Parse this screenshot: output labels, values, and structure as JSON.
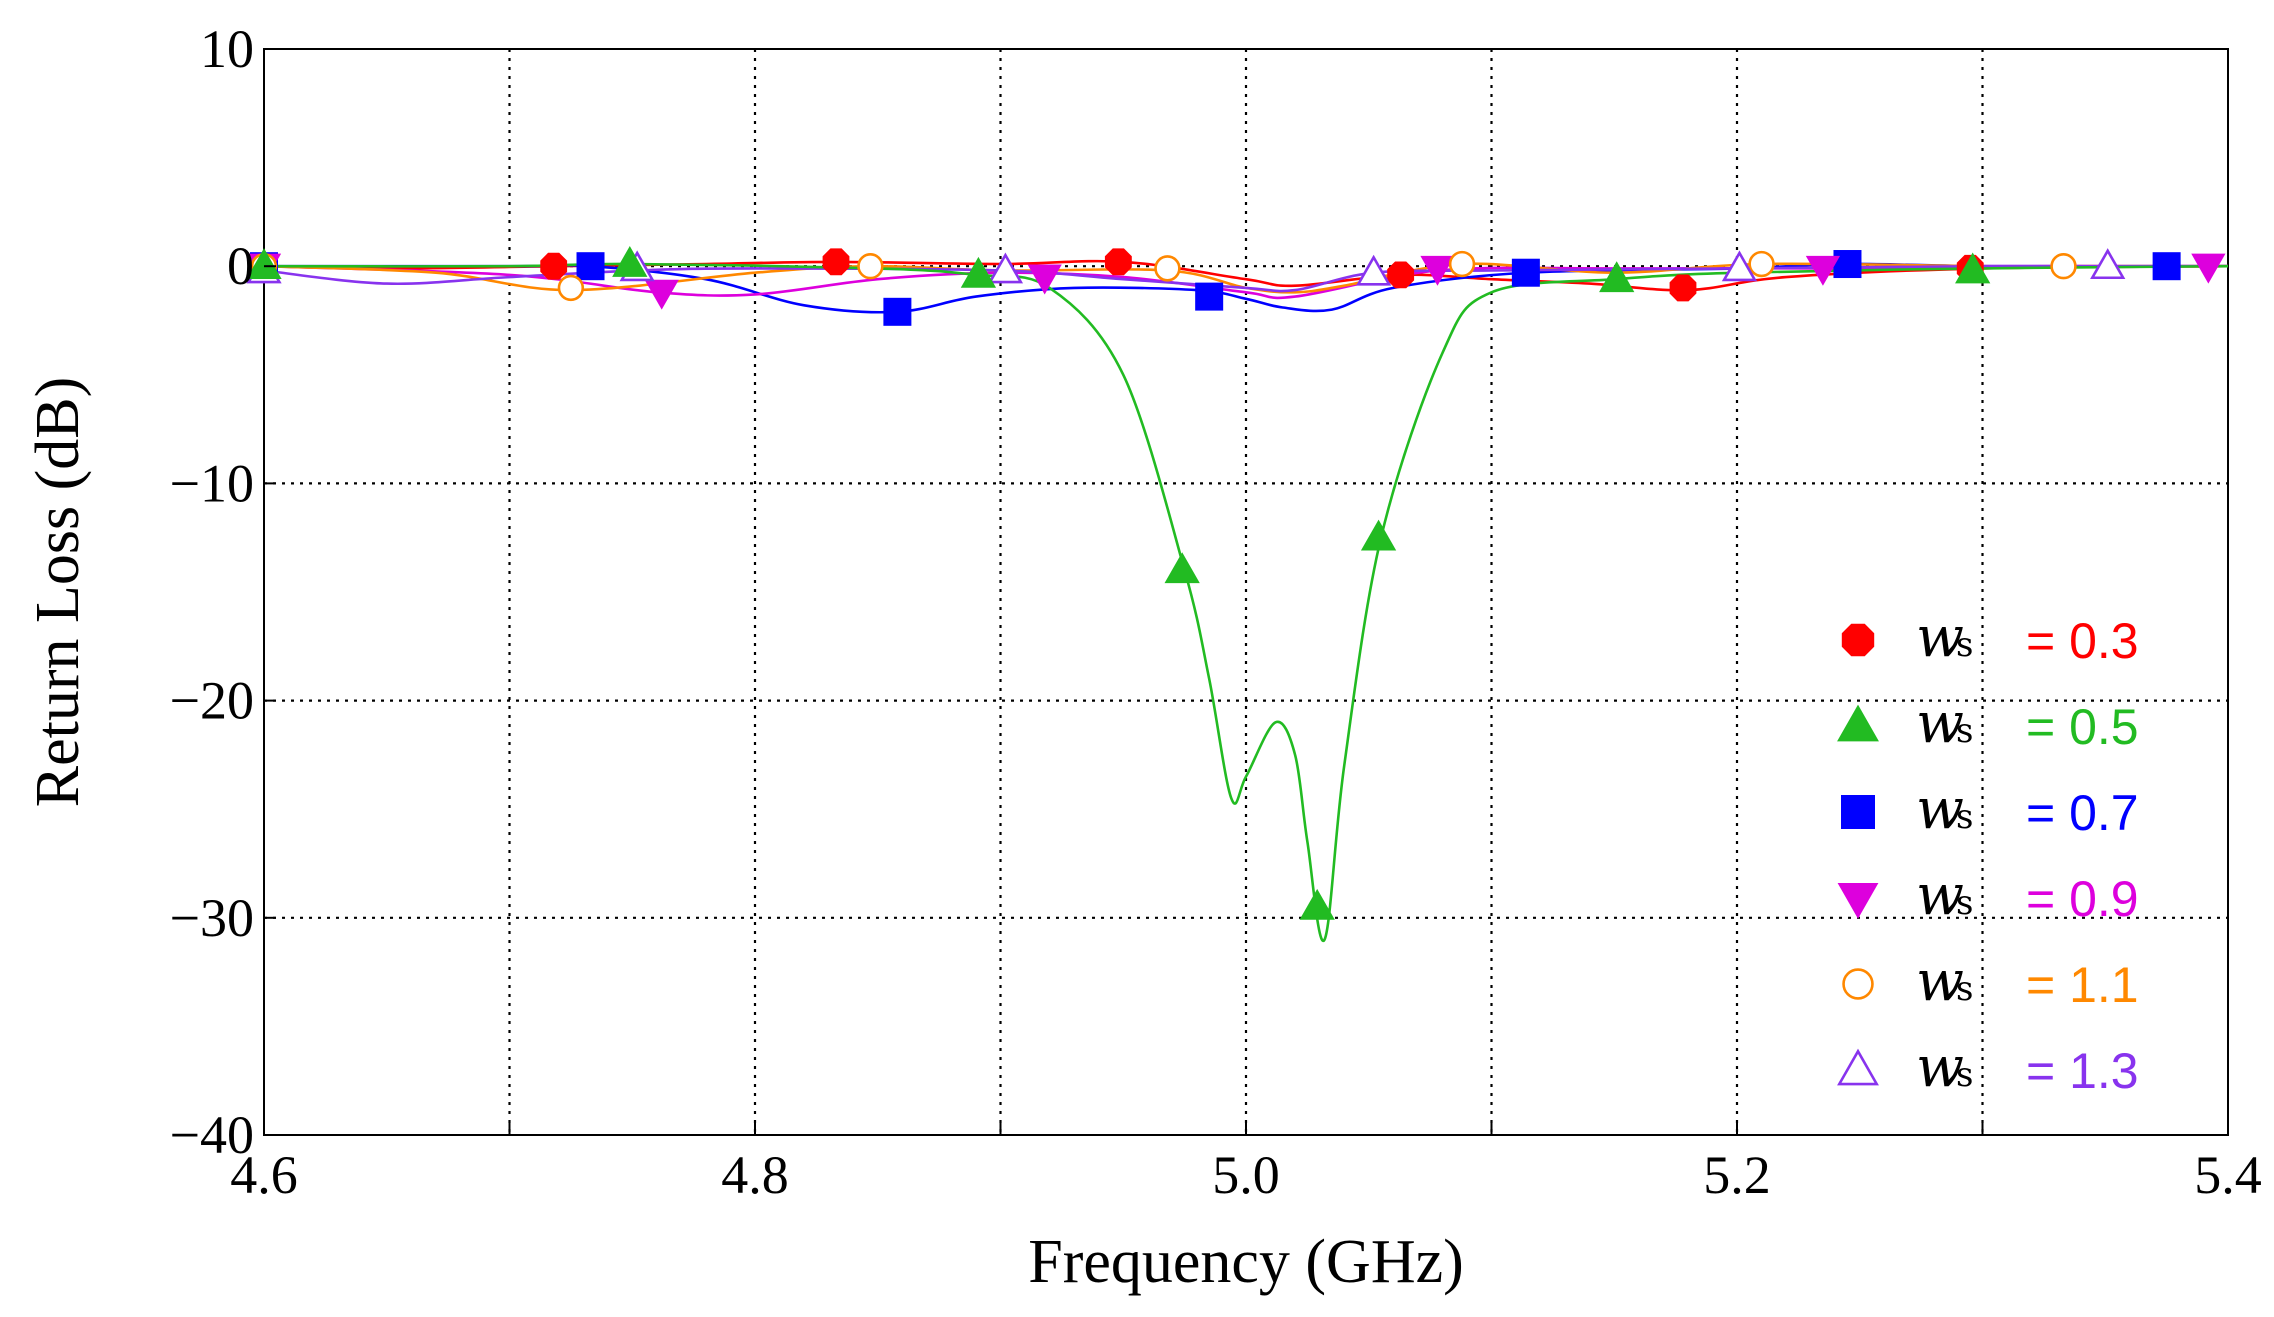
{
  "chart_data": {
    "type": "line",
    "title": "",
    "xlabel": "Frequency (GHz)",
    "ylabel": "Return Loss (dB)",
    "xlim": [
      4.6,
      5.4
    ],
    "ylim": [
      -40,
      10
    ],
    "xticks": [
      4.6,
      4.7,
      4.8,
      4.9,
      5.0,
      5.1,
      5.2,
      5.3,
      5.4
    ],
    "xtick_labels": [
      "4.6",
      "",
      "4.8",
      "",
      "5.0",
      "",
      "5.2",
      "",
      "5.4"
    ],
    "yticks": [
      10,
      0,
      -10,
      -20,
      -30,
      -40
    ],
    "ytick_labels": [
      "10",
      "0",
      "−10",
      "−20",
      "−30",
      "−40"
    ],
    "grid": true,
    "legend_position": "bottom-right",
    "legend_symbol": "w",
    "legend_subscript": "s",
    "series": [
      {
        "name": "ws = 0.3",
        "value_label": "= 0.3",
        "color": "#ff0000",
        "marker": "filled-octagon",
        "x": [
          4.6,
          4.65,
          4.72,
          4.78,
          4.833,
          4.9,
          4.95,
          5.0,
          5.02,
          5.063,
          5.1,
          5.14,
          5.18,
          5.22,
          5.3,
          5.4
        ],
        "y": [
          0,
          -0.1,
          0,
          0.1,
          0.2,
          0.1,
          0.2,
          -0.6,
          -0.9,
          -0.4,
          -0.6,
          -0.8,
          -1.1,
          -0.5,
          -0.1,
          0
        ],
        "marker_x": [
          4.6,
          4.718,
          4.833,
          4.948,
          5.063,
          5.178,
          5.295
        ],
        "marker_y": [
          0,
          0,
          0.2,
          0.2,
          -0.4,
          -1.0,
          -0.1
        ]
      },
      {
        "name": "ws = 0.5",
        "value_label": "= 0.5",
        "color": "#22bb22",
        "marker": "filled-triangle-up",
        "x": [
          4.6,
          4.7,
          4.75,
          4.85,
          4.89,
          4.92,
          4.95,
          4.975,
          4.985,
          4.994,
          5.0,
          5.012,
          5.02,
          5.025,
          5.032,
          5.04,
          5.055,
          5.08,
          5.1,
          5.15,
          5.2,
          5.3,
          5.4
        ],
        "y": [
          0,
          0,
          0.1,
          -0.1,
          -0.4,
          -1.0,
          -5.0,
          -14.0,
          -19.0,
          -24.5,
          -23.5,
          -21.0,
          -22.5,
          -26.5,
          -31.0,
          -23.0,
          -12.5,
          -4.0,
          -1.2,
          -0.6,
          -0.3,
          -0.1,
          0
        ],
        "marker_x": [
          4.6,
          4.749,
          4.891,
          4.974,
          5.029,
          5.054,
          5.151,
          5.296
        ],
        "marker_y": [
          0,
          0.1,
          -0.4,
          -14.0,
          -29.5,
          -12.5,
          -0.6,
          -0.2
        ]
      },
      {
        "name": "ws = 0.7",
        "value_label": "= 0.7",
        "color": "#0000ff",
        "marker": "filled-square",
        "x": [
          4.6,
          4.7,
          4.733,
          4.78,
          4.82,
          4.858,
          4.89,
          4.93,
          4.98,
          5.0,
          5.015,
          5.035,
          5.06,
          5.114,
          5.2,
          5.245,
          5.3,
          5.375,
          5.4
        ],
        "y": [
          0,
          0,
          0,
          -0.6,
          -1.8,
          -2.1,
          -1.4,
          -1.0,
          -1.1,
          -1.5,
          -1.9,
          -2.0,
          -1.0,
          -0.3,
          -0.1,
          0.1,
          0,
          0,
          0
        ],
        "marker_x": [
          4.6,
          4.733,
          4.858,
          4.985,
          5.114,
          5.245,
          5.375
        ],
        "marker_y": [
          0,
          0,
          -2.1,
          -1.4,
          -0.3,
          0.1,
          0
        ]
      },
      {
        "name": "ws = 0.9",
        "value_label": "= 0.9",
        "color": "#dd00dd",
        "marker": "filled-triangle-down",
        "x": [
          4.6,
          4.7,
          4.76,
          4.8,
          4.85,
          4.9,
          4.95,
          5.0,
          5.02,
          5.078,
          5.15,
          5.235,
          5.3,
          5.4
        ],
        "y": [
          0,
          -0.4,
          -1.2,
          -1.3,
          -0.6,
          -0.3,
          -0.5,
          -1.2,
          -1.4,
          -0.2,
          -0.1,
          -0.1,
          0,
          0
        ],
        "marker_x": [
          4.6,
          4.762,
          4.918,
          5.078,
          5.235,
          5.392
        ],
        "marker_y": [
          0,
          -1.2,
          -0.5,
          -0.1,
          -0.1,
          0
        ]
      },
      {
        "name": "ws = 1.1",
        "value_label": "= 1.1",
        "color": "#ff8800",
        "marker": "open-circle",
        "x": [
          4.6,
          4.67,
          4.725,
          4.8,
          4.847,
          4.9,
          4.968,
          5.0,
          5.02,
          5.04,
          5.088,
          5.15,
          5.21,
          5.3,
          5.333,
          5.4
        ],
        "y": [
          0,
          -0.3,
          -1.1,
          -0.3,
          0,
          -0.2,
          -0.2,
          -1.0,
          -1.2,
          -0.9,
          0.1,
          -0.3,
          0.1,
          0,
          0,
          0
        ],
        "marker_x": [
          4.6,
          4.725,
          4.847,
          4.968,
          5.088,
          5.21,
          5.333
        ],
        "marker_y": [
          0,
          -1.0,
          0,
          -0.1,
          0.1,
          0.1,
          0
        ]
      },
      {
        "name": "ws = 1.3",
        "value_label": "= 1.3",
        "color": "#8833ee",
        "marker": "open-triangle-up",
        "x": [
          4.6,
          4.65,
          4.7,
          4.752,
          4.8,
          4.9,
          4.95,
          5.0,
          5.02,
          5.052,
          5.1,
          5.2,
          5.3,
          5.35,
          5.4
        ],
        "y": [
          -0.2,
          -0.8,
          -0.5,
          -0.2,
          -0.1,
          -0.2,
          -0.6,
          -1.0,
          -1.1,
          -0.3,
          -0.2,
          -0.1,
          0,
          0,
          0
        ],
        "marker_x": [
          4.6,
          4.752,
          4.902,
          5.052,
          5.201,
          5.351
        ],
        "marker_y": [
          -0.2,
          -0.1,
          -0.2,
          -0.3,
          -0.1,
          0
        ]
      }
    ]
  }
}
